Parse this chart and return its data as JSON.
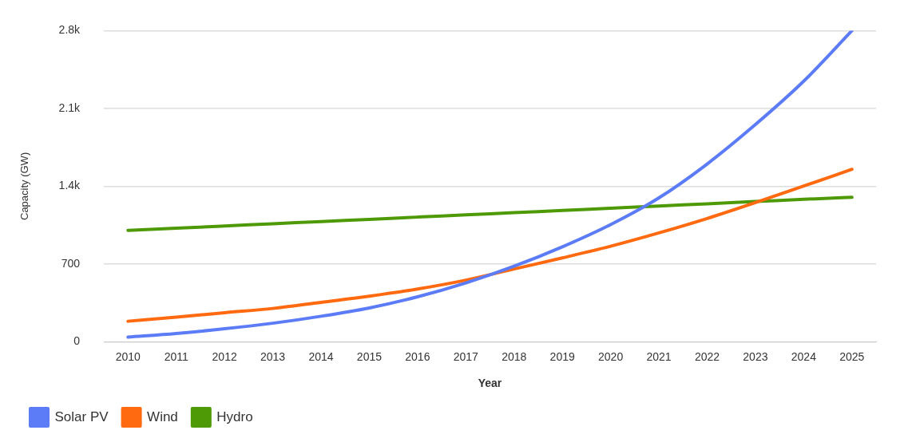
{
  "chart_data": {
    "type": "line",
    "xlabel": "Year",
    "ylabel": "Capacity (GW)",
    "categories": [
      "2010",
      "2011",
      "2012",
      "2013",
      "2014",
      "2015",
      "2016",
      "2017",
      "2018",
      "2019",
      "2020",
      "2021",
      "2022",
      "2023",
      "2024",
      "2025"
    ],
    "series": [
      {
        "name": "Solar PV",
        "color": "#5b7cf6",
        "values": [
          42,
          75,
          117,
          167,
          230,
          305,
          405,
          530,
          680,
          855,
          1055,
          1295,
          1600,
          1955,
          2345,
          2800
        ]
      },
      {
        "name": "Wind",
        "color": "#ff6a10",
        "values": [
          185,
          222,
          262,
          300,
          355,
          410,
          475,
          555,
          655,
          755,
          860,
          980,
          1110,
          1253,
          1402,
          1552
        ]
      },
      {
        "name": "Hydro",
        "color": "#4e9a06",
        "values": [
          1003,
          1022,
          1042,
          1062,
          1082,
          1102,
          1122,
          1142,
          1162,
          1182,
          1202,
          1222,
          1242,
          1262,
          1282,
          1300
        ]
      }
    ],
    "ylim": [
      0,
      2800
    ],
    "yticks": [
      0,
      700,
      {
        "value": 1400,
        "label": "1.4k"
      },
      {
        "value": 2100,
        "label": "2.1k"
      },
      {
        "value": 2800,
        "label": "2.8k"
      }
    ],
    "grid": "y",
    "legend": "bottom left",
    "marker": "none",
    "line_style": "solid"
  }
}
